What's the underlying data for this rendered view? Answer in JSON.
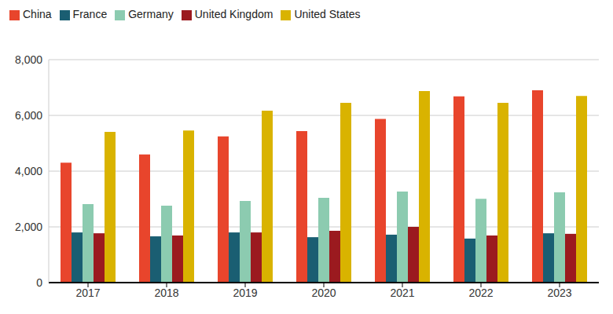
{
  "chart_data": {
    "type": "bar",
    "categories": [
      "2017",
      "2018",
      "2019",
      "2020",
      "2021",
      "2022",
      "2023"
    ],
    "series": [
      {
        "name": "China",
        "color": "#e8452c",
        "values": [
          4300,
          4600,
          5250,
          5440,
          5870,
          6680,
          6900
        ]
      },
      {
        "name": "France",
        "color": "#1a5e72",
        "values": [
          1800,
          1660,
          1800,
          1630,
          1720,
          1580,
          1770
        ]
      },
      {
        "name": "Germany",
        "color": "#8ccbb0",
        "values": [
          2820,
          2760,
          2930,
          3040,
          3270,
          3010,
          3240
        ]
      },
      {
        "name": "United Kingdom",
        "color": "#9b1a1f",
        "values": [
          1770,
          1690,
          1800,
          1860,
          2000,
          1690,
          1750
        ]
      },
      {
        "name": "United States",
        "color": "#d9b300",
        "values": [
          5410,
          5460,
          6170,
          6450,
          6870,
          6450,
          6700
        ]
      }
    ],
    "ylim": [
      0,
      8000
    ],
    "yticks": [
      0,
      {
        "value": 2000,
        "label": "2,000"
      },
      {
        "value": 4000,
        "label": "4,000"
      },
      {
        "value": 6000,
        "label": "6,000"
      },
      {
        "value": 8000,
        "label": "8,000"
      }
    ],
    "grid": true,
    "legend": "top-left"
  }
}
